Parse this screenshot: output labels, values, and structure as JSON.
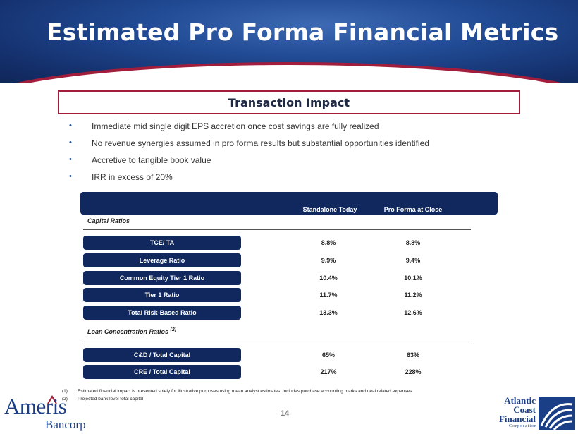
{
  "slide": {
    "title": "Estimated Pro Forma Financial Metrics",
    "page_number": "14"
  },
  "impact": {
    "title": "Transaction Impact",
    "bullets": [
      "Immediate mid single digit EPS accretion once cost savings are fully realized",
      "No revenue synergies assumed in pro forma results but substantial opportunities identified",
      "Accretive to tangible book value",
      "IRR in excess of 20%"
    ]
  },
  "table": {
    "columns": [
      "Standalone Today",
      "Pro Forma at Close"
    ],
    "capital_section": {
      "label": "Capital Ratios",
      "rows": [
        {
          "metric": "TCE/ TA",
          "standalone": "8.8%",
          "pro_forma": "8.8%"
        },
        {
          "metric": "Leverage Ratio",
          "standalone": "9.9%",
          "pro_forma": "9.4%"
        },
        {
          "metric": "Common Equity Tier 1 Ratio",
          "standalone": "10.4%",
          "pro_forma": "10.1%"
        },
        {
          "metric": "Tier 1 Ratio",
          "standalone": "11.7%",
          "pro_forma": "11.2%"
        },
        {
          "metric": "Total Risk-Based Ratio",
          "standalone": "13.3%",
          "pro_forma": "12.6%"
        }
      ]
    },
    "loan_section": {
      "label": "Loan Concentration Ratios",
      "footnote_marker": "(2)",
      "rows": [
        {
          "metric": "C&D / Total Capital",
          "standalone": "65%",
          "pro_forma": "63%"
        },
        {
          "metric": "CRE / Total Capital",
          "standalone": "217%",
          "pro_forma": "228%"
        }
      ]
    }
  },
  "footnotes": [
    {
      "num": "(1)",
      "text": "Estimated financial impact is presented solely for illustrative purposes using mean analyst estimates. Includes purchase accounting marks and deal related expenses"
    },
    {
      "num": "(2)",
      "text": "Projected bank level total capital"
    }
  ],
  "logos": {
    "ameris_name": "Ameris",
    "ameris_sub": "Bancorp",
    "acf_line1": "Atlantic",
    "acf_line2": "Coast",
    "acf_line3": "Financial",
    "acf_corp": "Corporation"
  },
  "colors": {
    "navy": "#10285e",
    "accent_red": "#a21d3b",
    "brand_blue": "#1b3f86"
  }
}
